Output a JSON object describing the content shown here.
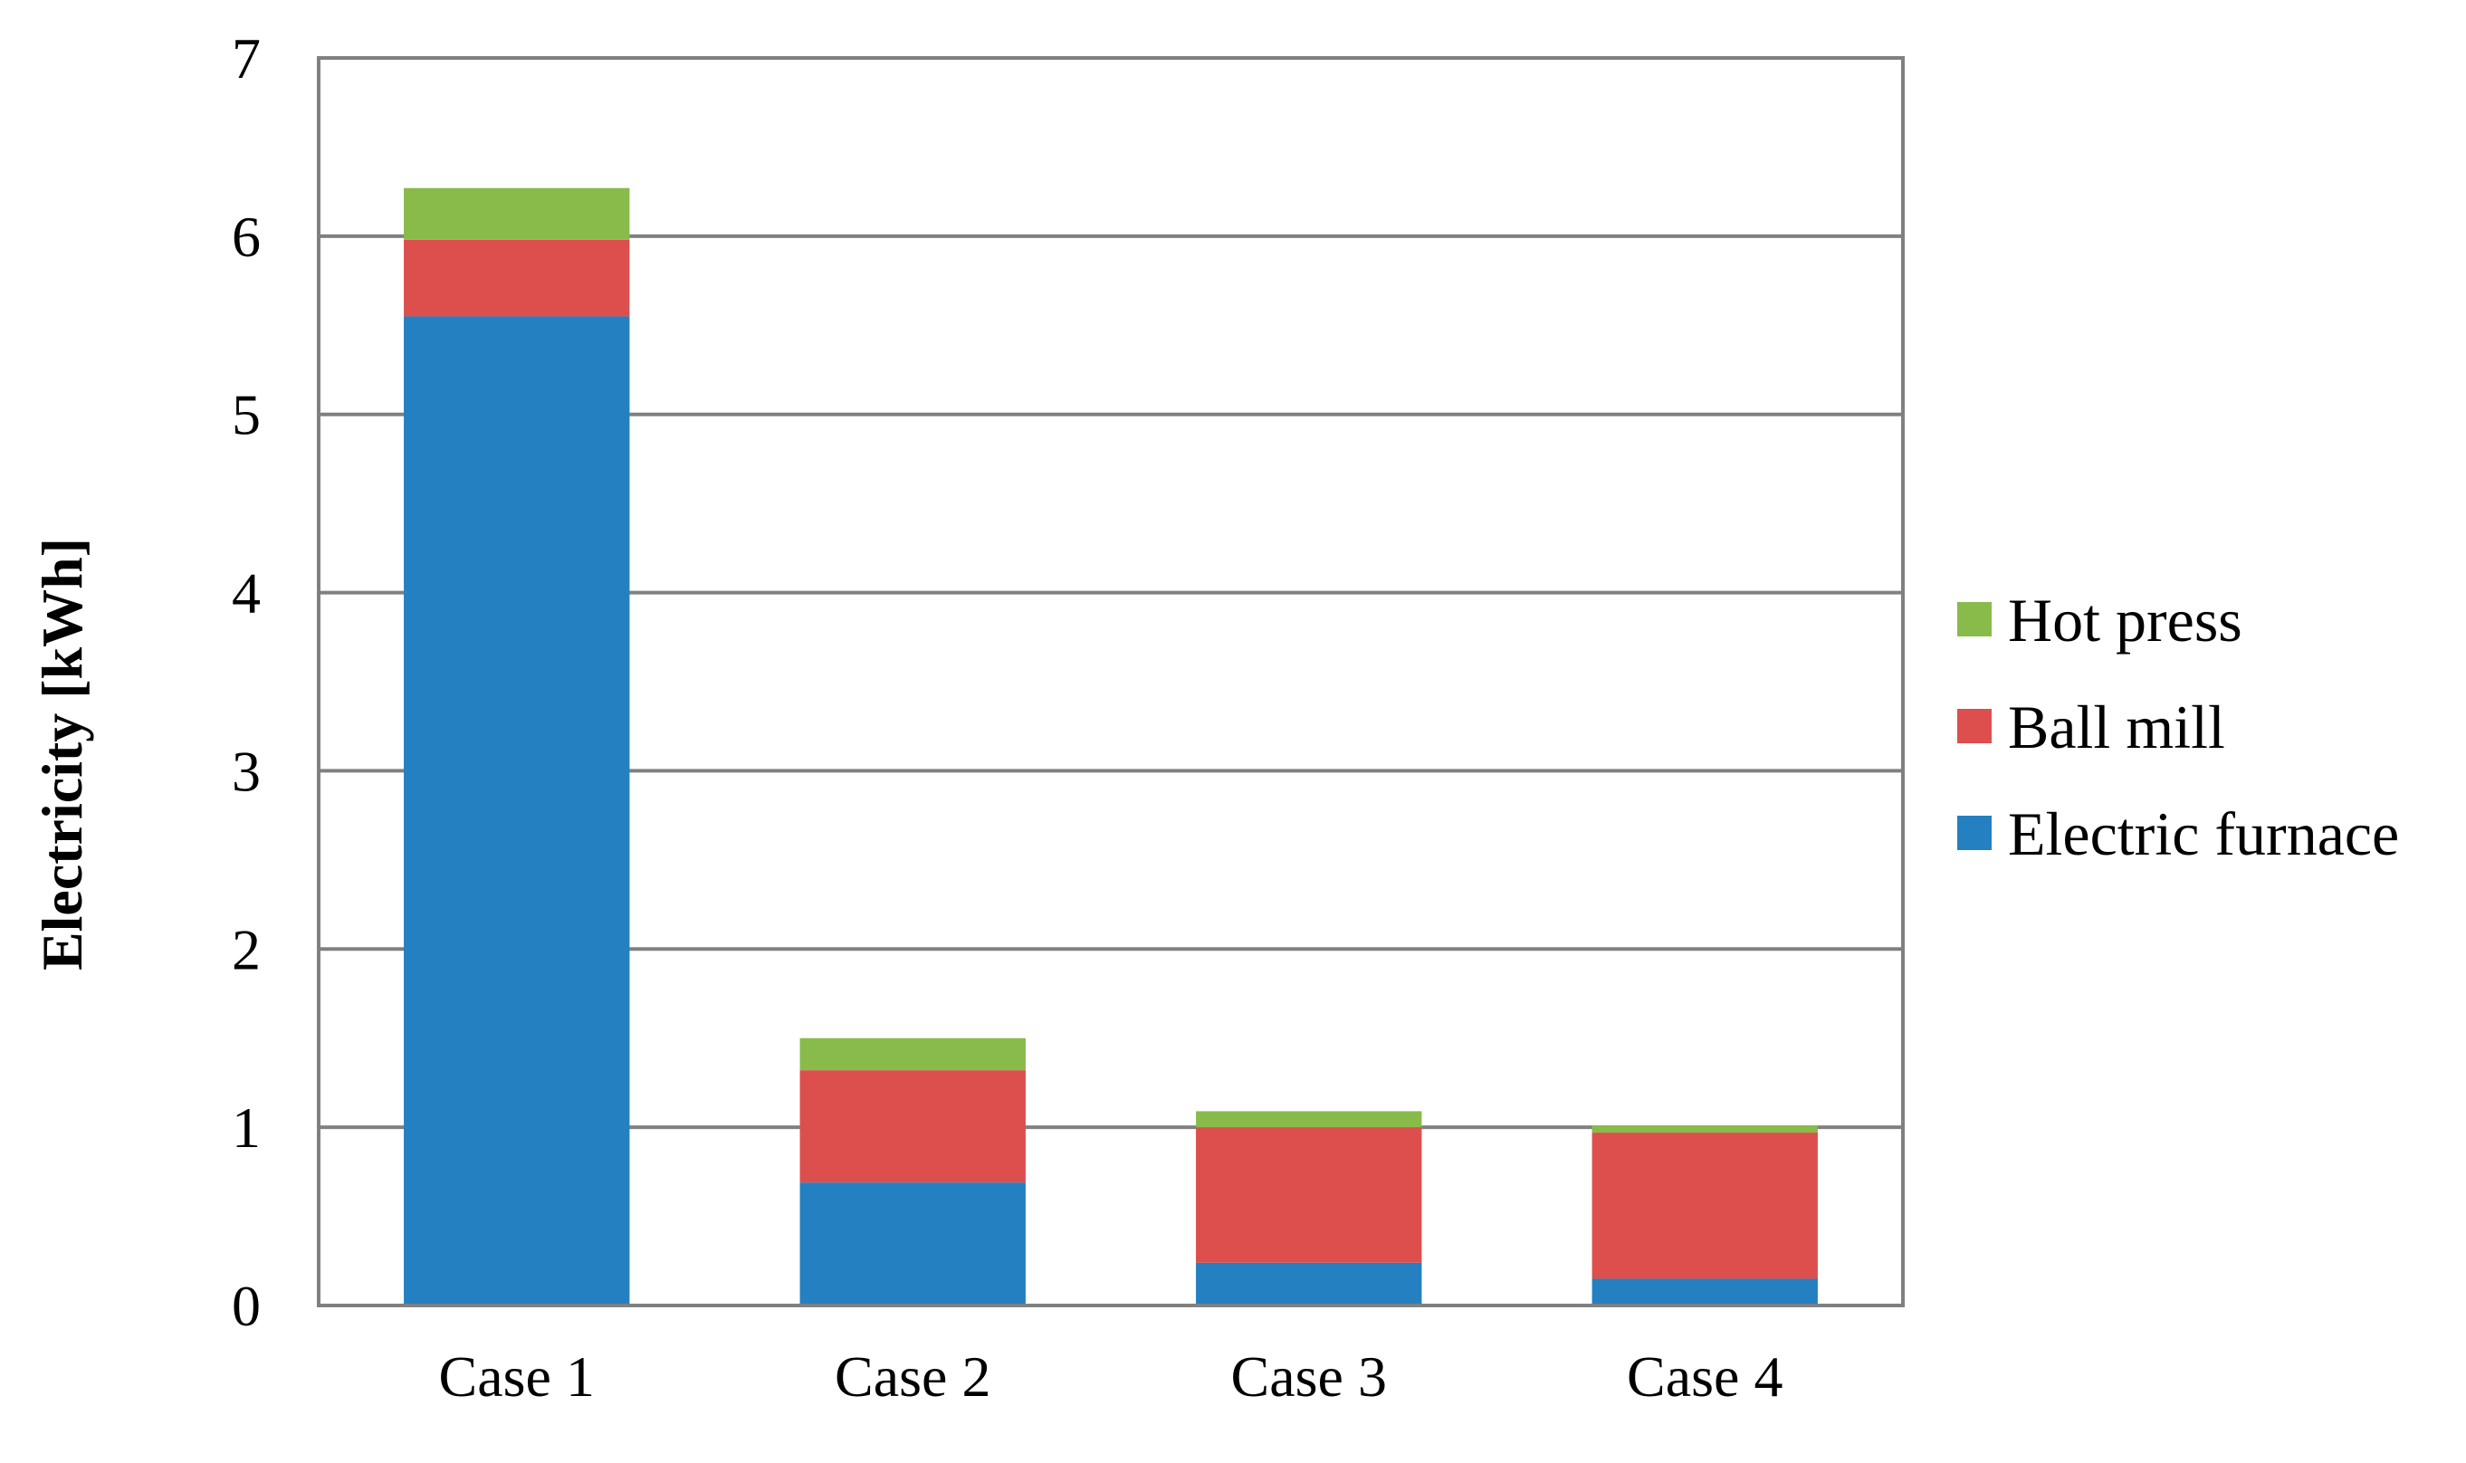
{
  "chart_data": {
    "type": "bar",
    "stacked": true,
    "title": "",
    "xlabel": "",
    "ylabel": "Electricity [kWh]",
    "ylim": [
      0,
      7
    ],
    "yticks": [
      "0",
      "1",
      "2",
      "3",
      "4",
      "5",
      "6",
      "7"
    ],
    "categories": [
      "Case 1",
      "Case 2",
      "Case 3",
      "Case 4"
    ],
    "series": [
      {
        "name": "Electric furnace",
        "color": "#2480c0",
        "values": [
          5.55,
          0.69,
          0.24,
          0.15
        ]
      },
      {
        "name": "Ball mill",
        "color": "#dd4f4d",
        "values": [
          0.43,
          0.63,
          0.76,
          0.82
        ]
      },
      {
        "name": "Hot press",
        "color": "#88bb4a",
        "values": [
          0.29,
          0.18,
          0.09,
          0.04
        ]
      }
    ],
    "legend_order": [
      "Hot press",
      "Ball mill",
      "Electric furnace"
    ],
    "legend_position": "right",
    "grid": true
  }
}
